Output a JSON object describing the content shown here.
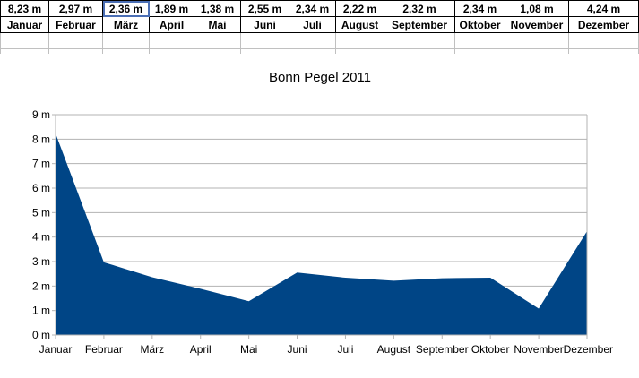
{
  "table": {
    "values": [
      "8,23 m",
      "2,97 m",
      "2,36 m",
      "1,89 m",
      "1,38 m",
      "2,55 m",
      "2,34 m",
      "2,22 m",
      "2,32 m",
      "2,34 m",
      "1,08 m",
      "4,24 m"
    ],
    "months": [
      "Januar",
      "Februar",
      "März",
      "April",
      "Mai",
      "Juni",
      "Juli",
      "August",
      "September",
      "Oktober",
      "November",
      "Dezember"
    ]
  },
  "chart_data": {
    "type": "area",
    "title": "Bonn Pegel 2011",
    "categories": [
      "Januar",
      "Februar",
      "März",
      "April",
      "Mai",
      "Juni",
      "Juli",
      "August",
      "September",
      "Oktober",
      "November",
      "Dezember"
    ],
    "series": [
      {
        "values": [
          8.23,
          2.97,
          2.36,
          1.89,
          1.38,
          2.55,
          2.34,
          2.22,
          2.32,
          2.34,
          1.08,
          4.24
        ]
      }
    ],
    "y_tick_labels": [
      "0 m",
      "1 m",
      "2 m",
      "3 m",
      "4 m",
      "5 m",
      "6 m",
      "7 m",
      "8 m",
      "9 m"
    ],
    "ylim": [
      0,
      9
    ],
    "grid": true,
    "color": "#004586"
  }
}
